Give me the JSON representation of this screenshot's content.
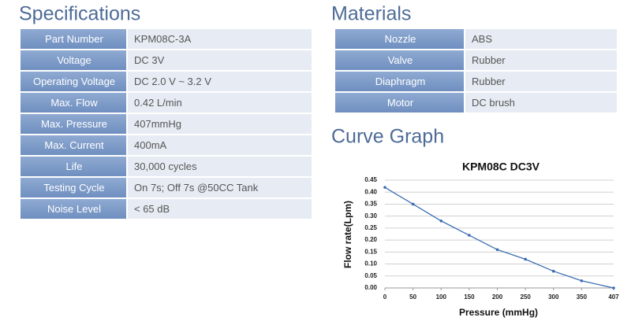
{
  "specifications": {
    "title": "Specifications",
    "rows": [
      [
        "Part Number",
        "KPM08C-3A"
      ],
      [
        "Voltage",
        "DC 3V"
      ],
      [
        "Operating Voltage",
        "DC 2.0 V ~ 3.2 V"
      ],
      [
        "Max. Flow",
        "0.42 L/min"
      ],
      [
        "Max. Pressure",
        "407mmHg"
      ],
      [
        "Max. Current",
        "400mA"
      ],
      [
        "Life",
        "30,000 cycles"
      ],
      [
        "Testing Cycle",
        "On 7s; Off 7s @50CC Tank"
      ],
      [
        "Noise Level",
        "< 65 dB"
      ]
    ]
  },
  "materials": {
    "title": "Materials",
    "rows": [
      [
        "Nozzle",
        "ABS"
      ],
      [
        "Valve",
        "Rubber"
      ],
      [
        "Diaphragm",
        "Rubber"
      ],
      [
        "Motor",
        "DC brush"
      ]
    ]
  },
  "curve_graph": {
    "title": "Curve Graph"
  },
  "chart_data": {
    "type": "line",
    "title": "KPM08C  DC3V",
    "x_label": "Pressure (mmHg)",
    "y_label": "Flow rate(Lpm)",
    "x": [
      0,
      50,
      100,
      150,
      200,
      250,
      300,
      350,
      407
    ],
    "series": [
      {
        "name": "KPM08C DC3V",
        "color": "#3b6db3",
        "values": [
          0.42,
          0.35,
          0.28,
          0.22,
          0.16,
          0.12,
          0.07,
          0.03,
          0.0
        ]
      }
    ],
    "xlim": [
      0,
      407
    ],
    "xticks": [
      0,
      50,
      100,
      150,
      200,
      250,
      300,
      350,
      407
    ],
    "ylim": [
      0,
      0.45
    ],
    "yticks": [
      {
        "value": 0,
        "label": "0.00"
      },
      0.05,
      {
        "value": 0.1,
        "label": "0.10"
      },
      0.15,
      {
        "value": 0.2,
        "label": "0.20"
      },
      0.25,
      {
        "value": 0.3,
        "label": "0.30"
      },
      0.35,
      {
        "value": 0.4,
        "label": "0.40"
      },
      0.45
    ],
    "grid": true
  }
}
